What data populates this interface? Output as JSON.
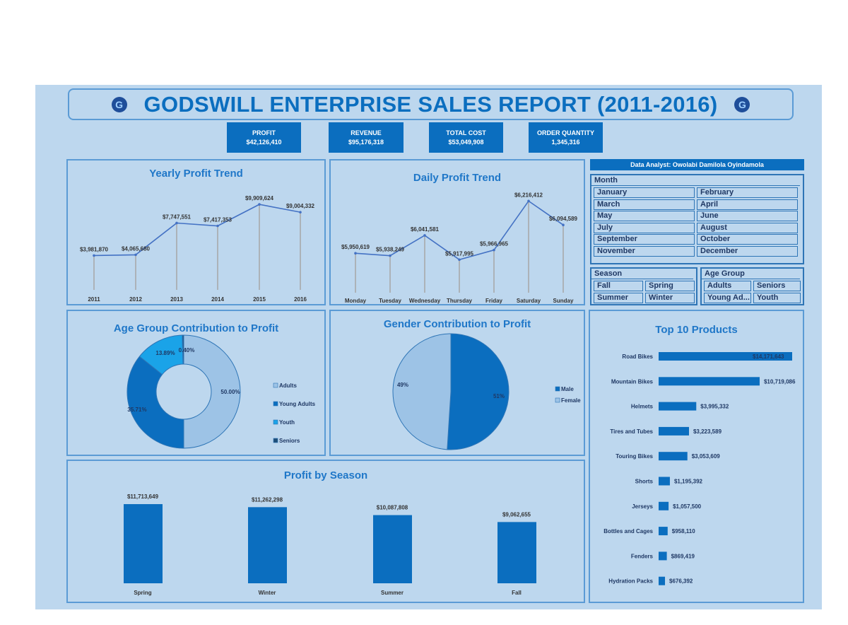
{
  "title": "GODSWILL ENTERPRISE SALES REPORT (2011-2016)",
  "logo_letter": "G",
  "kpis": [
    {
      "label": "PROFIT",
      "value": "$42,126,410"
    },
    {
      "label": "REVENUE",
      "value": "$95,176,318"
    },
    {
      "label": "TOTAL COST",
      "value": "$53,049,908"
    },
    {
      "label": "ORDER QUANTITY",
      "value": "1,345,316"
    }
  ],
  "analyst": "Data Analyst: Owolabi Damilola Oyindamola",
  "slicers": {
    "month": {
      "title": "Month",
      "items": [
        "January",
        "February",
        "March",
        "April",
        "May",
        "June",
        "July",
        "August",
        "September",
        "October",
        "November",
        "December"
      ]
    },
    "season": {
      "title": "Season",
      "items": [
        "Fall",
        "Spring",
        "Summer",
        "Winter"
      ]
    },
    "age": {
      "title": "Age Group",
      "items": [
        "Adults",
        "Seniors",
        "Young Ad...",
        "Youth"
      ]
    }
  },
  "colors": {
    "accent": "#0b6ebf",
    "background": "#bdd7ee",
    "light": "#9dc3e6",
    "youth": "#1aa3e8",
    "seniors": "#1f4e79"
  },
  "chart_data": [
    {
      "type": "line",
      "title": "Yearly Profit Trend",
      "categories": [
        "2011",
        "2012",
        "2013",
        "2014",
        "2015",
        "2016"
      ],
      "values": [
        3981870,
        4065680,
        7747551,
        7417353,
        9909624,
        9004332
      ],
      "labels": [
        "$3,981,870",
        "$4,065,680",
        "$7,747,551",
        "$7,417,353",
        "$9,909,624",
        "$9,004,332"
      ],
      "ylim": [
        0,
        10000000
      ]
    },
    {
      "type": "line",
      "title": "Daily Profit Trend",
      "categories": [
        "Monday",
        "Tuesday",
        "Wednesday",
        "Thursday",
        "Friday",
        "Saturday",
        "Sunday"
      ],
      "values": [
        5950619,
        5938249,
        6041581,
        5917995,
        5966965,
        6216412,
        6094589
      ],
      "labels": [
        "$5,950,619",
        "$5,938,249",
        "$6,041,581",
        "$5,917,995",
        "$5,966,965",
        "$6,216,412",
        "$6,094,589"
      ],
      "ylim": [
        5750000,
        6250000
      ]
    },
    {
      "type": "pie",
      "title": "Age Group Contribution to Profit",
      "donut": true,
      "categories": [
        "Adults",
        "Young Adults",
        "Youth",
        "Seniors"
      ],
      "values": [
        50.0,
        35.71,
        13.89,
        0.4
      ],
      "labels": [
        "50.00%",
        "35.71%",
        "13.89%",
        "0.40%"
      ],
      "legend": "right"
    },
    {
      "type": "pie",
      "title": "Gender Contribution to Profit",
      "categories": [
        "Male",
        "Female"
      ],
      "values": [
        51,
        49
      ],
      "labels": [
        "51%",
        "49%"
      ],
      "legend": "right"
    },
    {
      "type": "bar",
      "title": "Top 10 Products",
      "orientation": "horizontal",
      "categories": [
        "Road Bikes",
        "Mountain Bikes",
        "Helmets",
        "Tires and Tubes",
        "Touring Bikes",
        "Shorts",
        "Jerseys",
        "Bottles and Cages",
        "Fenders",
        "Hydration Packs"
      ],
      "values": [
        14171643,
        10719086,
        3995332,
        3223589,
        3053609,
        1195392,
        1057500,
        958110,
        869419,
        676392
      ],
      "labels": [
        "$14,171,643",
        "$10,719,086",
        "$3,995,332",
        "$3,223,589",
        "$3,053,609",
        "$1,195,392",
        "$1,057,500",
        "$958,110",
        "$869,419",
        "$676,392"
      ]
    },
    {
      "type": "bar",
      "title": "Profit by Season",
      "categories": [
        "Spring",
        "Winter",
        "Summer",
        "Fall"
      ],
      "values": [
        11713649,
        11262298,
        10087808,
        9062655
      ],
      "labels": [
        "$11,713,649",
        "$11,262,298",
        "$10,087,808",
        "$9,062,655"
      ]
    }
  ]
}
